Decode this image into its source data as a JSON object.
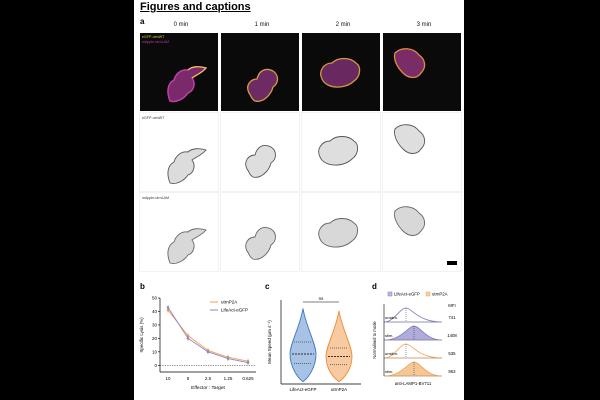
{
  "title": "Figures and captions",
  "panel_a": {
    "label": "a",
    "timepoints": [
      "0 min",
      "1 min",
      "2 min",
      "3 min"
    ],
    "row_labels": {
      "merge_line1": "eGFP-utrnWT",
      "merge_line2": "mApple-utrnLAM",
      "gfp": "eGFP-utrnWT",
      "mapple": "mApple-utrnLAM"
    },
    "colors": {
      "gfp_channel": "#e6d23c",
      "mapple_channel": "#c03aa8"
    }
  },
  "panel_b": {
    "label": "b",
    "chart_data": {
      "type": "line",
      "ylabel": "Specific Lysis (%)",
      "xlabel": "Effector : Target",
      "categories": [
        "10",
        "5",
        "2.5",
        "1.25",
        "0.625"
      ],
      "yticks": [
        "0",
        "10",
        "20",
        "30",
        "40",
        "50"
      ],
      "ylim": [
        -5,
        50
      ],
      "legend_position": "top-right",
      "series": [
        {
          "name": "utrnP2A",
          "color": "#f0a050",
          "values": [
            41,
            22,
            11,
            6,
            3
          ]
        },
        {
          "name": "LifeAct-eGFP",
          "color": "#8a86c8",
          "values": [
            43,
            20,
            10,
            5,
            2
          ]
        }
      ],
      "baseline": 0
    }
  },
  "panel_c": {
    "label": "c",
    "chart_data": {
      "type": "violin",
      "ylabel": "Mean Speed (μm s⁻¹)",
      "categories": [
        "LifeAct-eGFP",
        "utrnP2A"
      ],
      "significance": "ns",
      "series": [
        {
          "name": "LifeAct-eGFP",
          "color": "#3b78c4",
          "median": 0.25,
          "q1": 0.17,
          "q3": 0.35
        },
        {
          "name": "utrnP2A",
          "color": "#f08a30",
          "median": 0.23,
          "q1": 0.16,
          "q3": 0.3
        }
      ]
    }
  },
  "panel_d": {
    "label": "d",
    "legend": [
      "LifeAct-eGFP",
      "utrnP2A"
    ],
    "mfi_header": "MFI",
    "ylabel": "Normalised to mode",
    "xlabel": "anti-LAMP1-BV711",
    "chart_data": {
      "type": "histogram",
      "rows": [
        {
          "label": "unstim.",
          "group": "LifeAct-eGFP",
          "mfi": "741"
        },
        {
          "label": "stim.",
          "group": "LifeAct-eGFP",
          "mfi": "1408"
        },
        {
          "label": "unstim.",
          "group": "utrnP2A",
          "mfi": "535"
        },
        {
          "label": "stim.",
          "group": "utrnP2A",
          "mfi": "963"
        }
      ],
      "colors": {
        "LifeAct-eGFP": "#7b75c0",
        "utrnP2A": "#f0a050"
      }
    }
  }
}
